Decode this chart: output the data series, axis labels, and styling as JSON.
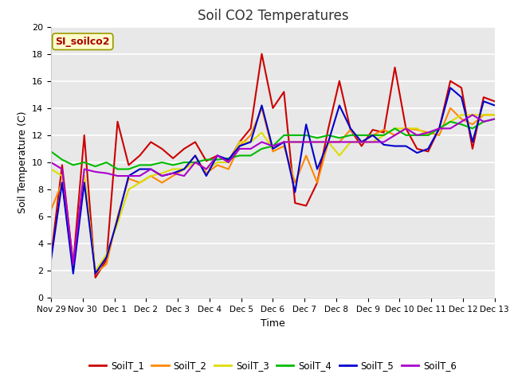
{
  "title": "Soil CO2 Temperatures",
  "xlabel": "Time",
  "ylabel": "Soil Temperature (C)",
  "annotation": "SI_soilco2",
  "ylim": [
    0,
    20
  ],
  "plot_bg": "#e8e8e8",
  "fig_bg": "#ffffff",
  "series_colors": {
    "SoilT_1": "#cc0000",
    "SoilT_2": "#ff8800",
    "SoilT_3": "#dddd00",
    "SoilT_4": "#00bb00",
    "SoilT_5": "#0000cc",
    "SoilT_6": "#aa00cc"
  },
  "xtick_labels": [
    "Nov 29",
    "Nov 30",
    "Dec 1",
    "Dec 2",
    "Dec 3",
    "Dec 4",
    "Dec 5",
    "Dec 6",
    "Dec 7",
    "Dec 8",
    "Dec 9",
    "Dec 10",
    "Dec 11",
    "Dec 12",
    "Dec 13"
  ],
  "xtick_positions": [
    0,
    1,
    2,
    3,
    4,
    5,
    6,
    7,
    8,
    9,
    10,
    11,
    12,
    13,
    14
  ],
  "SoilT_1": [
    3.0,
    9.8,
    2.5,
    12.0,
    1.5,
    2.8,
    13.0,
    9.8,
    10.5,
    11.5,
    11.0,
    10.3,
    11.0,
    11.5,
    10.1,
    10.5,
    10.1,
    11.5,
    12.5,
    18.0,
    14.0,
    15.2,
    7.0,
    6.8,
    8.5,
    12.5,
    16.0,
    12.4,
    11.2,
    12.4,
    12.2,
    17.0,
    12.5,
    11.0,
    10.8,
    12.5,
    16.0,
    15.5,
    11.0,
    14.8,
    14.5
  ],
  "SoilT_2": [
    6.5,
    8.5,
    2.4,
    9.0,
    1.8,
    2.5,
    6.0,
    8.8,
    8.5,
    9.0,
    8.5,
    9.0,
    9.5,
    10.5,
    9.2,
    9.8,
    9.5,
    11.2,
    12.0,
    14.0,
    10.8,
    11.2,
    8.5,
    10.5,
    8.5,
    11.5,
    11.5,
    12.4,
    11.5,
    12.0,
    12.4,
    12.0,
    12.5,
    12.4,
    12.2,
    12.0,
    14.0,
    13.2,
    12.8,
    13.5,
    13.5
  ],
  "SoilT_3": [
    9.5,
    9.0,
    2.4,
    9.0,
    2.0,
    3.2,
    5.5,
    8.0,
    8.5,
    9.0,
    9.2,
    9.5,
    9.5,
    10.0,
    9.5,
    10.0,
    10.0,
    11.5,
    11.5,
    12.2,
    11.0,
    11.5,
    11.5,
    11.5,
    11.5,
    11.5,
    10.5,
    11.5,
    11.5,
    11.5,
    12.0,
    12.5,
    12.5,
    12.5,
    12.0,
    12.5,
    13.0,
    13.5,
    13.5,
    13.5,
    13.5
  ],
  "SoilT_4": [
    10.8,
    10.2,
    9.8,
    10.0,
    9.7,
    10.0,
    9.5,
    9.5,
    9.8,
    9.8,
    10.0,
    9.8,
    10.0,
    10.0,
    10.2,
    10.2,
    10.3,
    10.5,
    10.5,
    11.0,
    11.2,
    12.0,
    12.0,
    12.0,
    11.8,
    12.0,
    11.8,
    12.0,
    12.0,
    12.0,
    12.0,
    12.5,
    12.0,
    12.0,
    12.0,
    12.5,
    13.0,
    12.8,
    12.5,
    13.0,
    13.2
  ],
  "SoilT_5": [
    2.8,
    8.5,
    1.8,
    8.5,
    1.8,
    3.0,
    5.8,
    9.0,
    9.5,
    9.5,
    9.0,
    9.2,
    9.5,
    10.5,
    9.0,
    10.5,
    10.2,
    11.2,
    11.5,
    14.2,
    11.0,
    11.5,
    7.8,
    12.8,
    9.5,
    11.5,
    14.2,
    12.5,
    11.5,
    12.0,
    11.3,
    11.2,
    11.2,
    10.7,
    11.0,
    12.5,
    15.5,
    14.8,
    11.5,
    14.5,
    14.2
  ],
  "SoilT_6": [
    10.0,
    9.5,
    2.5,
    9.5,
    9.3,
    9.2,
    9.0,
    9.0,
    9.0,
    9.5,
    9.0,
    9.2,
    9.0,
    10.0,
    9.5,
    10.5,
    10.0,
    11.0,
    11.0,
    11.5,
    11.2,
    11.5,
    11.5,
    11.5,
    11.5,
    11.5,
    11.5,
    11.5,
    11.5,
    11.5,
    11.5,
    12.0,
    12.5,
    12.0,
    12.2,
    12.5,
    12.5,
    13.0,
    13.5,
    13.0,
    13.2
  ]
}
